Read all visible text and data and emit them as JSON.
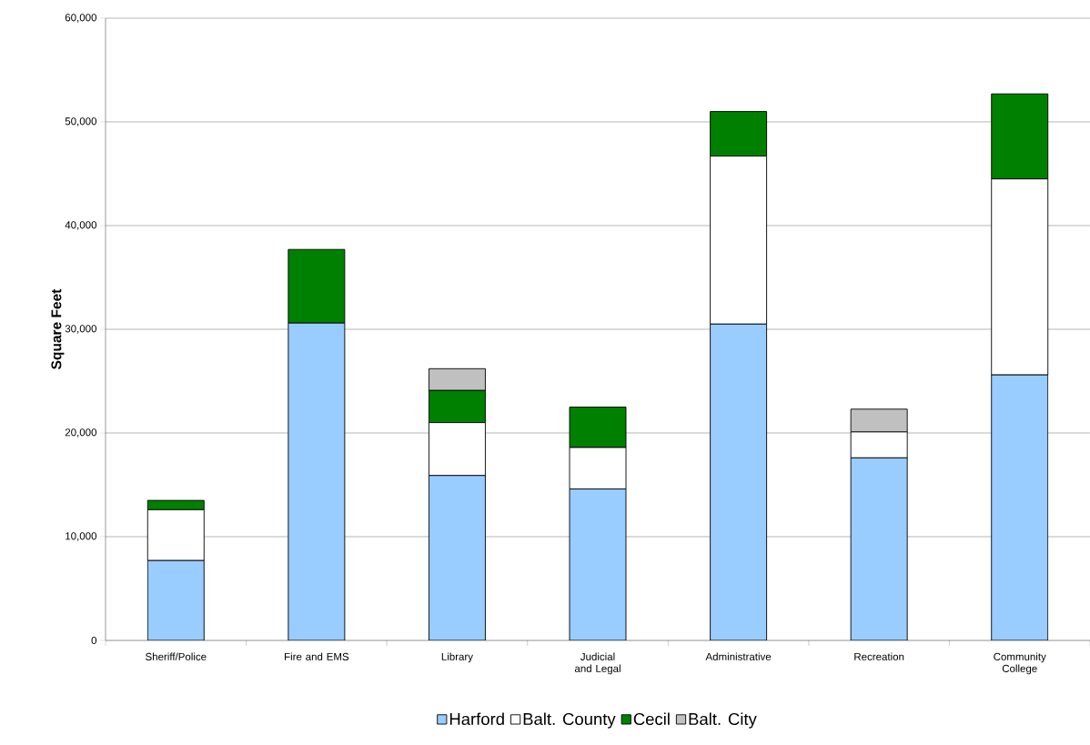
{
  "chart_data": {
    "type": "bar",
    "stacked": true,
    "ylabel": "Square Feet",
    "categories": [
      "Sheriff/Police",
      "Fire and EMS",
      "Library",
      "Judicial and Legal",
      "Administrative",
      "Recreation",
      "Community College"
    ],
    "series": [
      {
        "name": "Harford",
        "color": "#99ccff",
        "values": [
          7700,
          30600,
          15900,
          14600,
          30500,
          17600,
          25600
        ]
      },
      {
        "name": "Balt. County",
        "color": "#ffffff",
        "values": [
          4900,
          0,
          5100,
          4000,
          16200,
          2500,
          18900
        ]
      },
      {
        "name": "Cecil",
        "color": "#008000",
        "values": [
          900,
          7100,
          3100,
          3900,
          4300,
          0,
          8200
        ]
      },
      {
        "name": "Balt. City",
        "color": "#c0c0c0",
        "values": [
          0,
          0,
          2100,
          0,
          0,
          2200,
          0
        ]
      }
    ],
    "ylim": [
      0,
      60000
    ],
    "yticks": [
      0,
      {
        "value": 10000,
        "label": "10,000"
      },
      {
        "value": 20000,
        "label": "20,000"
      },
      {
        "value": 30000,
        "label": "30,000"
      },
      {
        "value": 40000,
        "label": "40,000"
      },
      {
        "value": 50000,
        "label": "50,000"
      },
      {
        "value": 60000,
        "label": "60,000"
      }
    ],
    "grid": "y",
    "legend": "bottom"
  }
}
